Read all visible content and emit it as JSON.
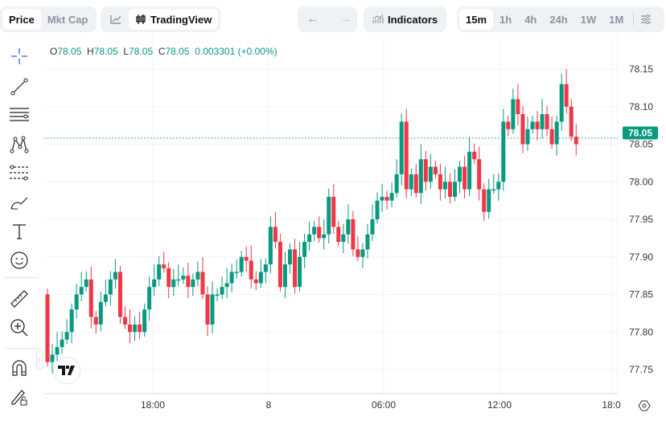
{
  "header": {
    "type_tabs": [
      {
        "label": "Price",
        "active": true
      },
      {
        "label": "Mkt Cap",
        "active": false
      }
    ],
    "chart_style": {
      "line_icon": "line-chart-icon",
      "tv_icon": "candles-icon",
      "tv_label": "TradingView"
    },
    "nav": {
      "back": "←",
      "forward": "→"
    },
    "indicators_label": "Indicators",
    "intervals": [
      {
        "label": "15m",
        "active": true
      },
      {
        "label": "1h"
      },
      {
        "label": "4h"
      },
      {
        "label": "24h"
      },
      {
        "label": "1W"
      },
      {
        "label": "1M"
      }
    ]
  },
  "legend": {
    "o_label": "O",
    "o": "78.05",
    "h_label": "H",
    "h": "78.05",
    "l_label": "L",
    "l": "78.05",
    "c_label": "C",
    "c": "78.05",
    "change": "0.003301",
    "change_pct": "(+0.00%)"
  },
  "colors": {
    "up": "#089981",
    "down": "#f23645",
    "accent": "#2962ff",
    "grid": "#f0f3fa"
  },
  "logo_text": "TV",
  "chart_data": {
    "type": "candlestick",
    "first_open": 77.85,
    "closes": [
      77.76,
      77.77,
      77.78,
      77.79,
      77.8,
      77.83,
      77.85,
      77.86,
      77.87,
      77.82,
      77.81,
      77.84,
      77.85,
      77.87,
      77.88,
      77.82,
      77.81,
      77.8,
      77.81,
      77.8,
      77.83,
      77.86,
      77.87,
      77.89,
      77.885,
      77.86,
      77.87,
      77.87,
      77.875,
      77.86,
      77.87,
      77.88,
      77.85,
      77.81,
      77.85,
      77.85,
      77.86,
      77.865,
      77.88,
      77.88,
      77.9,
      77.895,
      77.87,
      77.865,
      77.88,
      77.89,
      77.94,
      77.92,
      77.86,
      77.89,
      77.91,
      77.86,
      77.9,
      77.92,
      77.93,
      77.94,
      77.925,
      77.93,
      77.98,
      77.94,
      77.92,
      77.93,
      77.95,
      77.91,
      77.9,
      77.91,
      77.93,
      77.95,
      77.975,
      77.98,
      77.975,
      77.985,
      78.01,
      78.08,
      77.99,
      78.01,
      77.985,
      78.03,
      78.0,
      78.02,
      78.01,
      77.99,
      78.0,
      77.98,
      78.0,
      78.02,
      77.99,
      78.04,
      78.03,
      77.99,
      77.96,
      77.99,
      77.99,
      78.0,
      78.08,
      78.07,
      78.11,
      78.09,
      78.05,
      78.07,
      78.08,
      78.07,
      78.09,
      78.07,
      78.05,
      78.08,
      78.13,
      78.1,
      78.06,
      78.05
    ],
    "interval": "15m",
    "y_ticks": [
      "78.15",
      "78.10",
      "78.05",
      "78.00",
      "77.95",
      "77.90",
      "77.85",
      "77.80",
      "77.75"
    ],
    "ylim": [
      77.7,
      78.19
    ],
    "x_ticks": [
      "18:00",
      "8",
      "06:00",
      "12:00",
      "18:0"
    ],
    "current_price": "78.05"
  }
}
